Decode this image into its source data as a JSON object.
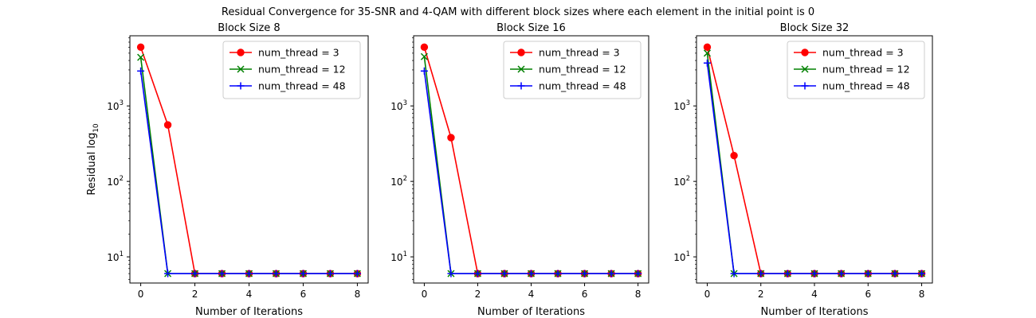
{
  "figure": {
    "suptitle": "Residual Convergence for 35-SNR and 4-QAM with different block sizes where each element in the initial point is 0"
  },
  "chart_data": [
    {
      "type": "line",
      "title": "Block Size 8",
      "xlabel": "Number of Iterations",
      "ylabel": "Residual log",
      "ylabel_subscript": "10",
      "yscale": "log",
      "xlim": [
        -0.4,
        8.4
      ],
      "ylim": [
        4.5,
        8500
      ],
      "xticks": [
        0,
        2,
        4,
        6,
        8
      ],
      "yticks": [
        {
          "value": 10,
          "base": "10",
          "exp": "1"
        },
        {
          "value": 100,
          "base": "10",
          "exp": "2"
        },
        {
          "value": 1000,
          "base": "10",
          "exp": "3"
        }
      ],
      "legend_position": "top-right",
      "grid": false,
      "x": [
        0,
        1,
        2,
        3,
        4,
        5,
        6,
        7,
        8
      ],
      "series": [
        {
          "name": "num_thread = 3",
          "color": "#ff0000",
          "marker": "circle",
          "values": [
            6000,
            560,
            6,
            6,
            6,
            6,
            6,
            6,
            6
          ]
        },
        {
          "name": "num_thread = 12",
          "color": "#008000",
          "marker": "x",
          "values": [
            4400,
            6,
            6,
            6,
            6,
            6,
            6,
            6,
            6
          ]
        },
        {
          "name": "num_thread = 48",
          "color": "#0000ff",
          "marker": "plus",
          "values": [
            2900,
            6,
            6,
            6,
            6,
            6,
            6,
            6,
            6
          ]
        }
      ]
    },
    {
      "type": "line",
      "title": "Block Size 16",
      "xlabel": "Number of Iterations",
      "ylabel": "",
      "yscale": "log",
      "xlim": [
        -0.4,
        8.4
      ],
      "ylim": [
        4.5,
        8500
      ],
      "xticks": [
        0,
        2,
        4,
        6,
        8
      ],
      "yticks": [
        {
          "value": 10,
          "base": "10",
          "exp": "1"
        },
        {
          "value": 100,
          "base": "10",
          "exp": "2"
        },
        {
          "value": 1000,
          "base": "10",
          "exp": "3"
        }
      ],
      "legend_position": "top-right",
      "grid": false,
      "x": [
        0,
        1,
        2,
        3,
        4,
        5,
        6,
        7,
        8
      ],
      "series": [
        {
          "name": "num_thread = 3",
          "color": "#ff0000",
          "marker": "circle",
          "values": [
            6000,
            380,
            6,
            6,
            6,
            6,
            6,
            6,
            6
          ]
        },
        {
          "name": "num_thread = 12",
          "color": "#008000",
          "marker": "x",
          "values": [
            4500,
            6,
            6,
            6,
            6,
            6,
            6,
            6,
            6
          ]
        },
        {
          "name": "num_thread = 48",
          "color": "#0000ff",
          "marker": "plus",
          "values": [
            2900,
            6,
            6,
            6,
            6,
            6,
            6,
            6,
            6
          ]
        }
      ]
    },
    {
      "type": "line",
      "title": "Block Size 32",
      "xlabel": "Number of Iterations",
      "ylabel": "",
      "yscale": "log",
      "xlim": [
        -0.4,
        8.4
      ],
      "ylim": [
        4.5,
        8500
      ],
      "xticks": [
        0,
        2,
        4,
        6,
        8
      ],
      "yticks": [
        {
          "value": 10,
          "base": "10",
          "exp": "1"
        },
        {
          "value": 100,
          "base": "10",
          "exp": "2"
        },
        {
          "value": 1000,
          "base": "10",
          "exp": "3"
        }
      ],
      "legend_position": "top-right",
      "grid": false,
      "x": [
        0,
        1,
        2,
        3,
        4,
        5,
        6,
        7,
        8
      ],
      "series": [
        {
          "name": "num_thread = 3",
          "color": "#ff0000",
          "marker": "circle",
          "values": [
            6000,
            220,
            6,
            6,
            6,
            6,
            6,
            6,
            6
          ]
        },
        {
          "name": "num_thread = 12",
          "color": "#008000",
          "marker": "x",
          "values": [
            5000,
            6,
            6,
            6,
            6,
            6,
            6,
            6,
            6
          ]
        },
        {
          "name": "num_thread = 48",
          "color": "#0000ff",
          "marker": "plus",
          "values": [
            3700,
            6,
            6,
            6,
            6,
            6,
            6,
            6,
            6
          ]
        }
      ]
    }
  ]
}
